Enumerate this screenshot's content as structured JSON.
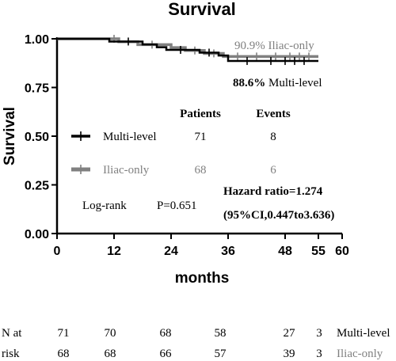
{
  "chart_data": {
    "type": "line",
    "title": "Survival",
    "xlabel": "months",
    "ylabel": "Survival",
    "xlim": [
      0,
      60
    ],
    "ylim": [
      0,
      1
    ],
    "x_ticks": [
      0,
      12,
      24,
      36,
      48,
      55,
      60
    ],
    "x_tick_labels": [
      "0",
      "12",
      "24",
      "36",
      "48",
      "55",
      "60"
    ],
    "y_ticks": [
      0,
      0.25,
      0.5,
      0.75,
      1.0
    ],
    "y_tick_labels": [
      "0.00",
      "0.25",
      "0.50",
      "0.75",
      "1.00"
    ],
    "grid": false,
    "legend_position": "center-left",
    "series": [
      {
        "name": "Multi-level",
        "color": "#000000",
        "steps": [
          [
            0,
            1.0
          ],
          [
            11,
            0.986
          ],
          [
            18,
            0.971
          ],
          [
            21,
            0.957
          ],
          [
            23,
            0.943
          ],
          [
            30,
            0.929
          ],
          [
            34,
            0.914
          ],
          [
            36,
            0.886
          ],
          [
            55,
            0.886
          ]
        ],
        "censors": [
          [
            15,
            0.986
          ],
          [
            26,
            0.943
          ],
          [
            32,
            0.929
          ],
          [
            40,
            0.886
          ],
          [
            45,
            0.886
          ],
          [
            48,
            0.886
          ],
          [
            50,
            0.886
          ],
          [
            52,
            0.886
          ]
        ]
      },
      {
        "name": "Iliac-only",
        "color": "#808080",
        "steps": [
          [
            0,
            1.0
          ],
          [
            13,
            0.985
          ],
          [
            17,
            0.97
          ],
          [
            24,
            0.955
          ],
          [
            27,
            0.94
          ],
          [
            31,
            0.925
          ],
          [
            35,
            0.909
          ],
          [
            55,
            0.909
          ]
        ],
        "censors": [
          [
            12,
            1.0
          ],
          [
            20,
            0.97
          ],
          [
            29,
            0.94
          ],
          [
            33,
            0.925
          ],
          [
            38,
            0.909
          ],
          [
            42,
            0.909
          ],
          [
            46,
            0.909
          ],
          [
            49,
            0.909
          ],
          [
            51,
            0.909
          ],
          [
            53,
            0.909
          ]
        ]
      }
    ],
    "annotations": {
      "iliac_end_label": "90.9% Iliac-only",
      "multi_end_value": "88.6%",
      "multi_end_name": " Multi-level",
      "patients_header": "Patients",
      "events_header": "Events",
      "legend_rows": [
        {
          "name": "Multi-level",
          "patients": "71",
          "events": "8"
        },
        {
          "name": "Iliac-only",
          "patients": "68",
          "events": "6"
        }
      ],
      "logrank_label": "Log-rank",
      "p_value": "P=0.651",
      "hazard_ratio": "Hazard ratio=1.274",
      "ci": "(95%CI,0.447to3.636)"
    },
    "risk_table": {
      "label_line1": "N at",
      "label_line2": "risk",
      "times": [
        0,
        12,
        24,
        36,
        48,
        55
      ],
      "rows": [
        {
          "name": "Multi-level",
          "counts": [
            "71",
            "70",
            "68",
            "58",
            "27",
            "3"
          ],
          "color": "#000000"
        },
        {
          "name": "Iliac-only",
          "counts": [
            "68",
            "68",
            "66",
            "57",
            "39",
            "3"
          ],
          "color": "#808080"
        }
      ]
    }
  }
}
